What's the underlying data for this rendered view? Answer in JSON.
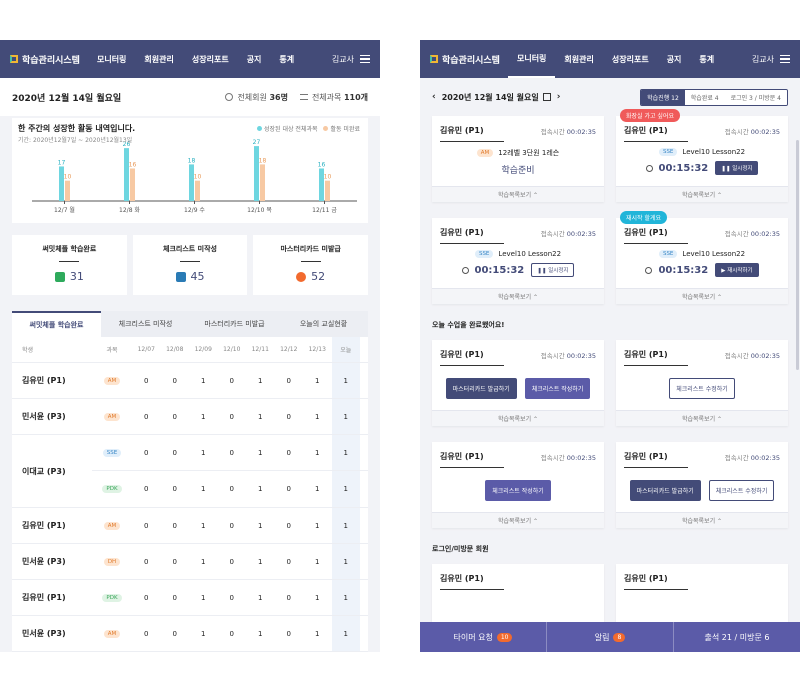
{
  "app": {
    "logo": "학습관리시스템",
    "nav": [
      "모니터링",
      "회원관리",
      "성장리포트",
      "공지",
      "통계"
    ],
    "user": "김교사"
  },
  "left": {
    "date": "2020년 12월 14일 월요일",
    "stats": [
      {
        "label": "전체회원",
        "value": "36명"
      },
      {
        "label": "전체과목",
        "value": "110개"
      }
    ],
    "chart_data": {
      "type": "bar",
      "title": "한 주간의 성장한 활동 내역입니다.",
      "subtitle": "기간: 2020년12월7일 ~ 2020년12월13일",
      "categories": [
        "12/7 월",
        "12/8 화",
        "12/9 수",
        "12/10 목",
        "12/11 금"
      ],
      "series": [
        {
          "name": "성장된 대상 전체과목",
          "values": [
            17,
            26,
            18,
            27,
            16
          ],
          "color": "#6ed6e0"
        },
        {
          "name": "활동 미완료",
          "values": [
            10,
            16,
            10,
            18,
            10
          ],
          "color": "#f7c9a3"
        }
      ],
      "ylim": [
        0,
        30
      ],
      "legend": "top-right"
    },
    "summary": [
      {
        "label": "써밋체플 학습완료",
        "value": "31",
        "icon": "check-icon",
        "color": "#2eaa5c"
      },
      {
        "label": "체크리스트 미작성",
        "value": "45",
        "icon": "checklist-icon",
        "color": "#2a7bb5"
      },
      {
        "label": "마스터리카드 미발급",
        "value": "52",
        "icon": "badge-icon",
        "color": "#f26a2e"
      }
    ],
    "tabs": [
      "써밋체플 학습완료",
      "체크리스트 미작성",
      "마스터리카드 미발급",
      "오늘의 교실현황"
    ],
    "table": {
      "headers": [
        "학생",
        "과목",
        "12/07",
        "12/08",
        "12/09",
        "12/10",
        "12/11",
        "12/12",
        "12/13",
        "오늘"
      ],
      "rows": [
        {
          "name": "김유민 (P1)",
          "subject": "AM",
          "values": [
            "0",
            "0",
            "1",
            "0",
            "1",
            "0",
            "1",
            "1"
          ]
        },
        {
          "name": "민서윤 (P3)",
          "subject": "AM",
          "values": [
            "0",
            "0",
            "1",
            "0",
            "1",
            "0",
            "1",
            "1"
          ]
        },
        {
          "name": "이대교 (P3)",
          "subrows": [
            {
              "subject": "SSE",
              "values": [
                "0",
                "0",
                "1",
                "0",
                "1",
                "0",
                "1",
                "1"
              ]
            },
            {
              "subject": "PDK",
              "values": [
                "0",
                "0",
                "1",
                "0",
                "1",
                "0",
                "1",
                "1"
              ]
            }
          ]
        },
        {
          "name": "김유민 (P1)",
          "subject": "AM",
          "values": [
            "0",
            "0",
            "1",
            "0",
            "1",
            "0",
            "1",
            "1"
          ]
        },
        {
          "name": "민서윤 (P3)",
          "subject": "DH",
          "values": [
            "0",
            "0",
            "1",
            "0",
            "1",
            "0",
            "1",
            "1"
          ]
        },
        {
          "name": "김유민 (P1)",
          "subject": "PDK",
          "values": [
            "0",
            "0",
            "1",
            "0",
            "1",
            "0",
            "1",
            "1"
          ]
        },
        {
          "name": "민서윤 (P3)",
          "subject": "AM",
          "values": [
            "0",
            "0",
            "1",
            "0",
            "1",
            "0",
            "1",
            "1"
          ]
        }
      ]
    }
  },
  "right": {
    "date": "2020년 12월 14일 월요일",
    "segments": [
      "학습진행 12",
      "학습완료 4",
      "로그인 3 / 미방문 4"
    ],
    "cards_in_progress": [
      {
        "name": "김유민 (P1)",
        "time_label": "접속시간",
        "time": "00:02:35",
        "subject": "AM",
        "lesson": "12레벨 3단원 1레슨",
        "status": "학습준비"
      },
      {
        "name": "김유민 (P1)",
        "time_label": "접속시간",
        "time": "00:02:35",
        "tag": "화장실 가고 싶어요",
        "subject": "SSE",
        "lesson": "Level10 Lesson22",
        "timer": "00:15:32",
        "button": "일시정지"
      },
      {
        "name": "김유민 (P1)",
        "time_label": "접속시간",
        "time": "00:02:35",
        "subject": "SSE",
        "lesson": "Level10 Lesson22",
        "timer": "00:15:32",
        "button": "일시정지"
      },
      {
        "name": "김유민 (P1)",
        "time_label": "접속시간",
        "time": "00:02:35",
        "tag": "재시작 할게요",
        "subject": "SSE",
        "lesson": "Level10 Lesson22",
        "timer": "00:15:32",
        "button": "재시작하기"
      }
    ],
    "completed_title": "오늘 수업을 완료했어요!",
    "cards_completed": [
      {
        "name": "김유민 (P1)",
        "time_label": "접속시간",
        "time": "00:02:35",
        "buttons": [
          "마스터리카드 발급하기",
          "체크리스트 작성하기"
        ]
      },
      {
        "name": "김유민 (P1)",
        "time_label": "접속시간",
        "time": "00:02:35",
        "buttons": [
          "체크리스트 수정하기"
        ]
      },
      {
        "name": "김유민 (P1)",
        "time_label": "접속시간",
        "time": "00:02:35",
        "buttons": [
          "체크리스트 작성하기"
        ]
      },
      {
        "name": "김유민 (P1)",
        "time_label": "접속시간",
        "time": "00:02:35",
        "buttons": [
          "마스터리카드 발급하기",
          "체크리스트 수정하기"
        ]
      }
    ],
    "card_footer": "학습목록보기 ⌃",
    "login_title": "로그인/미방문 회원",
    "login_cards": [
      {
        "name": "김유민 (P1)"
      },
      {
        "name": "김유민 (P1)"
      }
    ],
    "bottom_bar": [
      {
        "label": "타이머 요청",
        "badge": "10"
      },
      {
        "label": "알림",
        "badge": "8"
      },
      {
        "label": "출석 21 / 미방문 6",
        "badge": ""
      }
    ]
  },
  "colors": {
    "primary": "#434b78",
    "accent": "#5b5ba8",
    "orange": "#f26a2e",
    "tag_red": "#f05a5a",
    "tag_blue": "#21b5d9"
  }
}
